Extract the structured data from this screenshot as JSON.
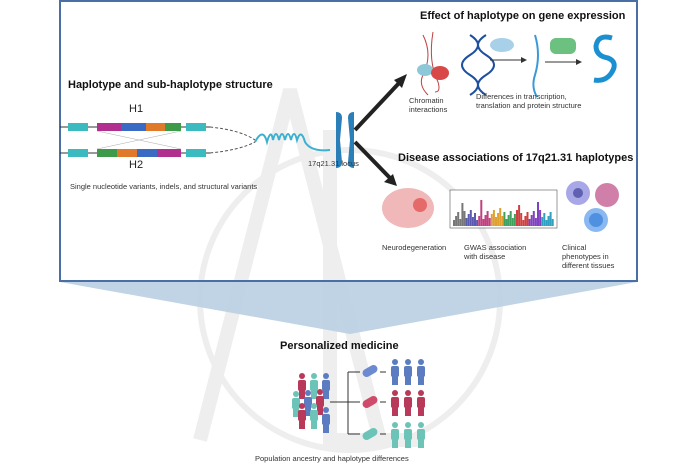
{
  "haplotype": {
    "title": "Haplotype and sub-haplotype structure",
    "h1": "H1",
    "h2": "H2",
    "caption": "Single nucleotide variants, indels, and structural variants",
    "locus": "17q21.31 locus"
  },
  "expression": {
    "title": "Effect of haplotype on gene expression",
    "chromatin": "Chromatin interactions",
    "chromatin_l1": "Chromatin",
    "chromatin_l2": "interactions",
    "diff_l1": "Differences in transcription,",
    "diff_l2": "translation and protein structure"
  },
  "disease": {
    "title": "Disease associations of 17q21.31 haplotypes",
    "neuro": "Neurodegeneration",
    "gwas_l1": "GWAS association",
    "gwas_l2": "with disease",
    "clin_l1": "Clinical",
    "clin_l2": "phenotypes  in",
    "clin_l3": "different tissues"
  },
  "medicine": {
    "title": "Personalized medicine",
    "caption": "Population ancestry and haplotype differences"
  },
  "colors": {
    "frame": "#4a6fa5",
    "funnel": "#b9cfe2",
    "blue": "#5b7cc0",
    "red": "#b8395a",
    "teal": "#6cc4b8"
  }
}
